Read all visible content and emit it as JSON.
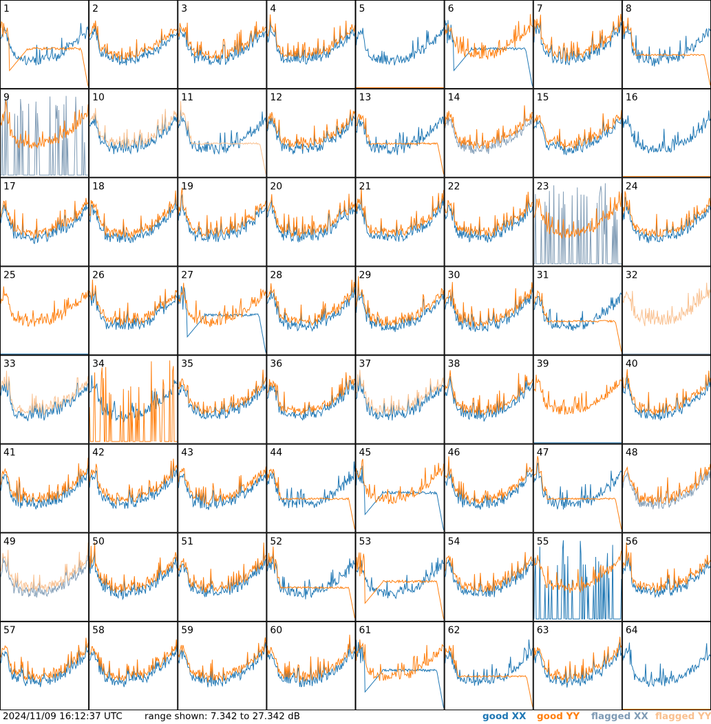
{
  "chart_data": {
    "type": "line",
    "layout": "8x8 grid of small-multiple spectra, one panel per input",
    "y_unit": "dB",
    "ylim": [
      7.342,
      27.342
    ],
    "grid": false,
    "colors": {
      "good_xx": "#1f77b4",
      "good_yy": "#ff7f0e",
      "flagged_xx": "#7f9bb5",
      "flagged_yy": "#f9c08f"
    },
    "legend_position": "bottom-right",
    "legend": [
      "good XX",
      "good YY",
      "flagged XX",
      "flagged YY"
    ],
    "panels": [
      {
        "label": "1",
        "xx": "good",
        "yy": "good",
        "yy_shape": "droop"
      },
      {
        "label": "2",
        "xx": "good",
        "yy": "good"
      },
      {
        "label": "3",
        "xx": "good",
        "yy": "good"
      },
      {
        "label": "4",
        "xx": "good",
        "yy": "good"
      },
      {
        "label": "5",
        "xx": "good",
        "yy": "good",
        "yy_shape": "dead"
      },
      {
        "label": "6",
        "xx": "good",
        "yy": "good",
        "xx_shape": "droop"
      },
      {
        "label": "7",
        "xx": "good",
        "yy": "good"
      },
      {
        "label": "8",
        "xx": "good",
        "yy": "good",
        "yy_shape": "plateau"
      },
      {
        "label": "9",
        "xx": "flagged",
        "yy": "good",
        "xx_shape": "spikes"
      },
      {
        "label": "10",
        "xx": "good",
        "yy": "flagged"
      },
      {
        "label": "11",
        "xx": "good",
        "yy": "flagged",
        "yy_shape": "plateau"
      },
      {
        "label": "12",
        "xx": "good",
        "yy": "good"
      },
      {
        "label": "13",
        "xx": "good",
        "yy": "good",
        "yy_shape": "plateau"
      },
      {
        "label": "14",
        "xx": "flagged",
        "yy": "good"
      },
      {
        "label": "15",
        "xx": "good",
        "yy": "good"
      },
      {
        "label": "16",
        "xx": "good",
        "yy": "good",
        "yy_shape": "dead"
      },
      {
        "label": "17",
        "xx": "good",
        "yy": "good"
      },
      {
        "label": "18",
        "xx": "good",
        "yy": "good"
      },
      {
        "label": "19",
        "xx": "good",
        "yy": "good"
      },
      {
        "label": "20",
        "xx": "good",
        "yy": "good"
      },
      {
        "label": "21",
        "xx": "good",
        "yy": "good"
      },
      {
        "label": "22",
        "xx": "good",
        "yy": "good"
      },
      {
        "label": "23",
        "xx": "flagged",
        "yy": "good",
        "xx_shape": "spikes"
      },
      {
        "label": "24",
        "xx": "good",
        "yy": "good"
      },
      {
        "label": "25",
        "xx": "good",
        "yy": "good",
        "xx_shape": "dead"
      },
      {
        "label": "26",
        "xx": "good",
        "yy": "good"
      },
      {
        "label": "27",
        "xx": "good",
        "yy": "good",
        "xx_shape": "droop"
      },
      {
        "label": "28",
        "xx": "good",
        "yy": "good"
      },
      {
        "label": "29",
        "xx": "good",
        "yy": "good"
      },
      {
        "label": "30",
        "xx": "good",
        "yy": "good"
      },
      {
        "label": "31",
        "xx": "good",
        "yy": "good",
        "yy_shape": "plateau"
      },
      {
        "label": "32",
        "xx": "flagged",
        "yy": "flagged",
        "xx_shape": "dead"
      },
      {
        "label": "33",
        "xx": "good",
        "yy": "flagged"
      },
      {
        "label": "34",
        "xx": "good",
        "yy": "good",
        "yy_shape": "spikes"
      },
      {
        "label": "35",
        "xx": "good",
        "yy": "good"
      },
      {
        "label": "36",
        "xx": "good",
        "yy": "good"
      },
      {
        "label": "37",
        "xx": "good",
        "yy": "flagged"
      },
      {
        "label": "38",
        "xx": "good",
        "yy": "good"
      },
      {
        "label": "39",
        "xx": "good",
        "yy": "good",
        "xx_shape": "dead"
      },
      {
        "label": "40",
        "xx": "good",
        "yy": "good"
      },
      {
        "label": "41",
        "xx": "good",
        "yy": "good"
      },
      {
        "label": "42",
        "xx": "good",
        "yy": "good"
      },
      {
        "label": "43",
        "xx": "good",
        "yy": "good"
      },
      {
        "label": "44",
        "xx": "good",
        "yy": "good",
        "yy_shape": "plateau"
      },
      {
        "label": "45",
        "xx": "good",
        "yy": "good",
        "xx_shape": "droop"
      },
      {
        "label": "46",
        "xx": "good",
        "yy": "good"
      },
      {
        "label": "47",
        "xx": "good",
        "yy": "good",
        "yy_shape": "plateau"
      },
      {
        "label": "48",
        "xx": "flagged",
        "yy": "good"
      },
      {
        "label": "49",
        "xx": "flagged",
        "yy": "flagged"
      },
      {
        "label": "50",
        "xx": "good",
        "yy": "good"
      },
      {
        "label": "51",
        "xx": "good",
        "yy": "good"
      },
      {
        "label": "52",
        "xx": "good",
        "yy": "good",
        "yy_shape": "plateau"
      },
      {
        "label": "53",
        "xx": "good",
        "yy": "good",
        "yy_shape": "droop"
      },
      {
        "label": "54",
        "xx": "good",
        "yy": "good"
      },
      {
        "label": "55",
        "xx": "good",
        "yy": "good",
        "xx_shape": "spikes"
      },
      {
        "label": "56",
        "xx": "good",
        "yy": "good"
      },
      {
        "label": "57",
        "xx": "good",
        "yy": "good"
      },
      {
        "label": "58",
        "xx": "good",
        "yy": "good"
      },
      {
        "label": "59",
        "xx": "good",
        "yy": "good"
      },
      {
        "label": "60",
        "xx": "good",
        "yy": "good"
      },
      {
        "label": "61",
        "xx": "good",
        "yy": "good",
        "xx_shape": "droop"
      },
      {
        "label": "62",
        "xx": "good",
        "yy": "good",
        "yy_shape": "plateau"
      },
      {
        "label": "63",
        "xx": "good",
        "yy": "good"
      },
      {
        "label": "64",
        "xx": "good",
        "yy": "good",
        "yy_shape": "dead"
      }
    ]
  },
  "footer": {
    "timestamp": "2024/11/09 16:12:37 UTC",
    "range_text": "range shown: 7.342 to 27.342 dB",
    "legend_good_xx": "good XX",
    "legend_good_yy": "good YY",
    "legend_flagged_xx": "flagged XX",
    "legend_flagged_yy": "flagged YY"
  }
}
